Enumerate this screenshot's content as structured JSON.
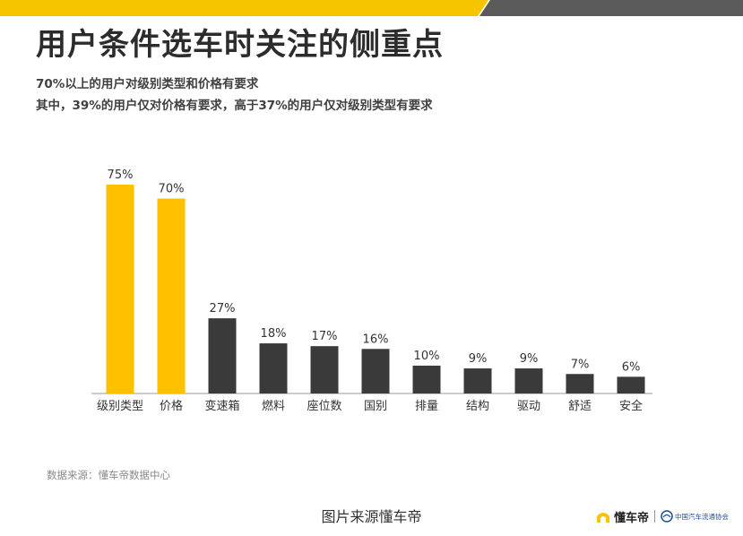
{
  "colors": {
    "highlight": "#FFC000",
    "bar": "#3A3A3A",
    "band_yellow": "#F6C500",
    "band_gray": "#5A5A5A",
    "partner_blue": "#1B4F9A"
  },
  "header": {
    "title": "用户条件选车时关注的侧重点",
    "subtitle_1": "70%以上的用户对级别类型和价格有要求",
    "subtitle_2": "其中，39%的用户仅对价格有要求，高于37%的用户仅对级别类型有要求"
  },
  "chart_data": {
    "type": "bar",
    "categories": [
      "级别类型",
      "价格",
      "变速箱",
      "燃料",
      "座位数",
      "国别",
      "排量",
      "结构",
      "驱动",
      "舒适",
      "安全"
    ],
    "values": [
      75,
      70,
      27,
      18,
      17,
      16,
      10,
      9,
      9,
      7,
      6
    ],
    "value_labels": [
      "75%",
      "70%",
      "27%",
      "18%",
      "17%",
      "16%",
      "10%",
      "9%",
      "9%",
      "7%",
      "6%"
    ],
    "highlighted": [
      0,
      1
    ],
    "ylim": [
      0,
      80
    ],
    "grid": false,
    "legend": "none"
  },
  "footer": {
    "source": "数据来源：懂车帝数据中心",
    "caption": "图片来源懂车帝",
    "logo_icon": "dongchedi-logo-icon",
    "logo_text": "懂车帝",
    "partner_icon": "caam-logo-icon",
    "partner_text": "中国汽车流通协会"
  }
}
